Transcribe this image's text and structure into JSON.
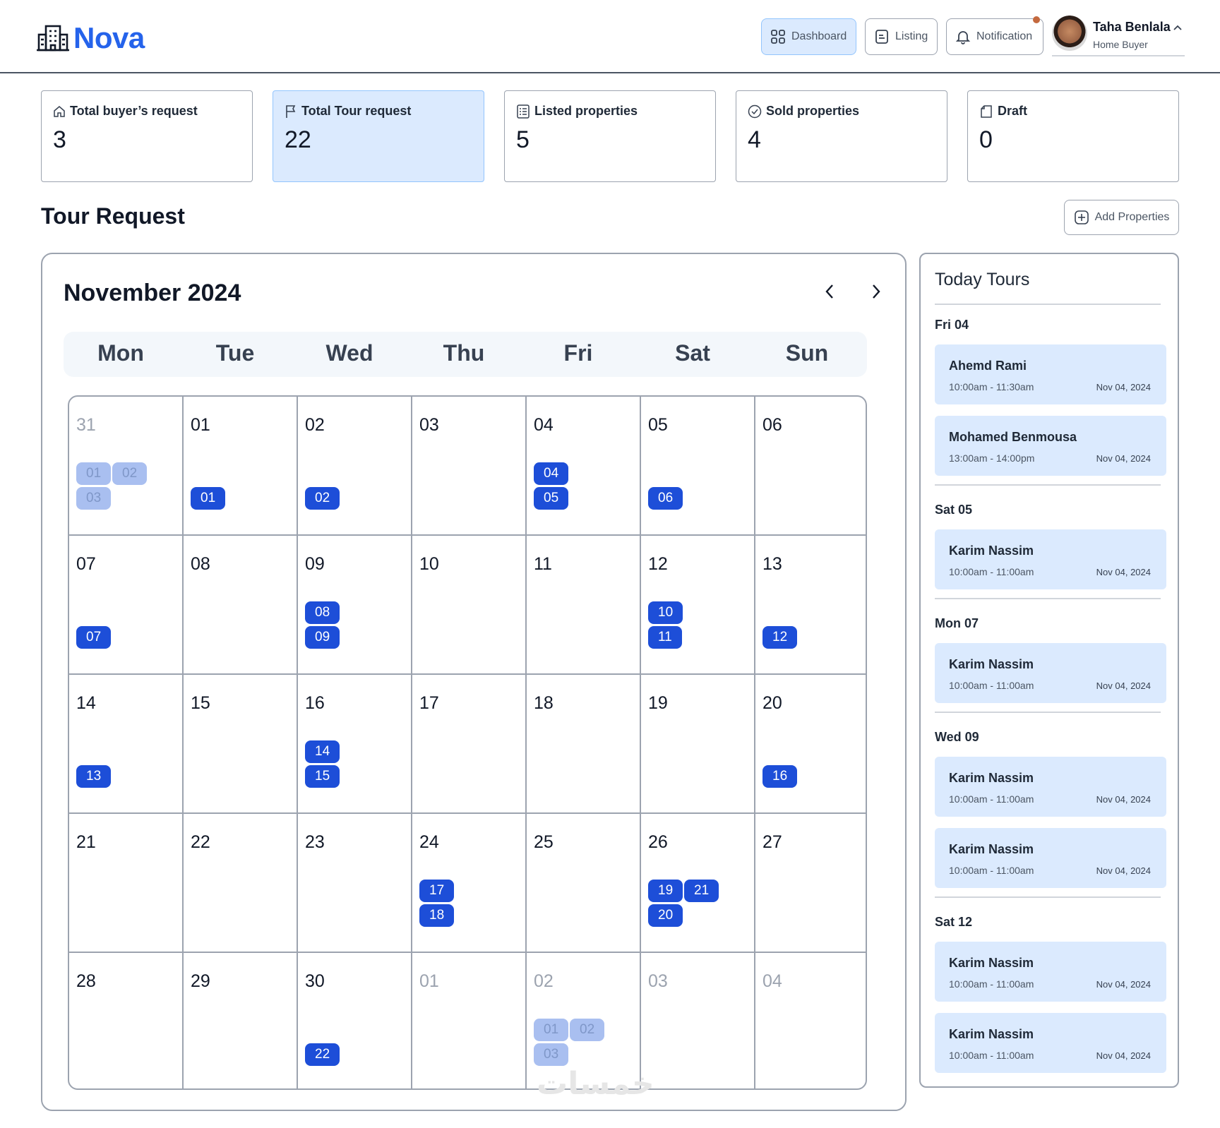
{
  "brand": {
    "name": "Nova"
  },
  "nav": {
    "dashboard": "Dashboard",
    "listing": "Listing",
    "notification": "Notification"
  },
  "user": {
    "name": "Taha Benlala",
    "role": "Home Buyer"
  },
  "stats": [
    {
      "label": "Total buyer’s request",
      "value": "3",
      "icon": "home-icon"
    },
    {
      "label": "Total Tour request",
      "value": "22",
      "icon": "flag-icon"
    },
    {
      "label": "Listed properties",
      "value": "5",
      "icon": "list-icon"
    },
    {
      "label": "Sold properties",
      "value": "4",
      "icon": "check-circle-icon"
    },
    {
      "label": "Draft",
      "value": "0",
      "icon": "file-icon"
    }
  ],
  "section": {
    "title": "Tour Request",
    "add_button": "Add Properties"
  },
  "calendar": {
    "month": "November 2024",
    "weekdays": [
      "Mon",
      "Tue",
      "Wed",
      "Thu",
      "Fri",
      "Sat",
      "Sun"
    ],
    "weeks": [
      [
        {
          "day": "31",
          "muted": true,
          "chips": [
            "01",
            "02",
            "03"
          ]
        },
        {
          "day": "01",
          "chips": [
            "01"
          ]
        },
        {
          "day": "02",
          "chips": [
            "02"
          ]
        },
        {
          "day": "03",
          "chips": []
        },
        {
          "day": "04",
          "chips": [
            "04",
            "05"
          ]
        },
        {
          "day": "05",
          "chips": [
            "06"
          ]
        },
        {
          "day": "06",
          "chips": []
        }
      ],
      [
        {
          "day": "07",
          "chips": [
            "07"
          ]
        },
        {
          "day": "08",
          "chips": []
        },
        {
          "day": "09",
          "chips": [
            "08",
            "09"
          ]
        },
        {
          "day": "10",
          "chips": []
        },
        {
          "day": "11",
          "chips": []
        },
        {
          "day": "12",
          "chips": [
            "10",
            "11"
          ]
        },
        {
          "day": "13",
          "chips": [
            "12"
          ]
        }
      ],
      [
        {
          "day": "14",
          "chips": [
            "13"
          ]
        },
        {
          "day": "15",
          "chips": []
        },
        {
          "day": "16",
          "chips": [
            "14",
            "15"
          ]
        },
        {
          "day": "17",
          "chips": []
        },
        {
          "day": "18",
          "chips": []
        },
        {
          "day": "19",
          "chips": []
        },
        {
          "day": "20",
          "chips": [
            "16"
          ]
        }
      ],
      [
        {
          "day": "21",
          "chips": []
        },
        {
          "day": "22",
          "chips": []
        },
        {
          "day": "23",
          "chips": []
        },
        {
          "day": "24",
          "chips": [
            "17",
            "18"
          ]
        },
        {
          "day": "25",
          "chips": []
        },
        {
          "day": "26",
          "chips": [
            "19",
            "21",
            "20"
          ]
        },
        {
          "day": "27",
          "chips": []
        }
      ],
      [
        {
          "day": "28",
          "chips": []
        },
        {
          "day": "29",
          "chips": []
        },
        {
          "day": "30",
          "chips": [
            "22"
          ]
        },
        {
          "day": "01",
          "muted": true,
          "chips": []
        },
        {
          "day": "02",
          "muted": true,
          "chips": [
            "01",
            "02",
            "03"
          ]
        },
        {
          "day": "03",
          "muted": true,
          "chips": []
        },
        {
          "day": "04",
          "muted": true,
          "chips": []
        }
      ]
    ]
  },
  "today_tours": {
    "title": "Today Tours",
    "groups": [
      {
        "label": "Fri 04",
        "tours": [
          {
            "name": "Ahemd Rami",
            "time": "10:00am - 11:30am",
            "date": "Nov 04, 2024"
          },
          {
            "name": "Mohamed Benmousa",
            "time": "13:00am - 14:00pm",
            "date": "Nov 04, 2024"
          }
        ]
      },
      {
        "label": "Sat 05",
        "tours": [
          {
            "name": "Karim Nassim",
            "time": "10:00am - 11:00am",
            "date": "Nov 04, 2024"
          }
        ]
      },
      {
        "label": "Mon 07",
        "tours": [
          {
            "name": "Karim Nassim",
            "time": "10:00am - 11:00am",
            "date": "Nov 04, 2024"
          }
        ]
      },
      {
        "label": "Wed 09",
        "tours": [
          {
            "name": "Karim Nassim",
            "time": "10:00am - 11:00am",
            "date": "Nov 04, 2024"
          },
          {
            "name": "Karim Nassim",
            "time": "10:00am - 11:00am",
            "date": "Nov 04, 2024"
          }
        ]
      },
      {
        "label": "Sat 12",
        "tours": [
          {
            "name": "Karim Nassim",
            "time": "10:00am - 11:00am",
            "date": "Nov 04, 2024"
          },
          {
            "name": "Karim Nassim",
            "time": "10:00am - 11:00am",
            "date": "Nov 04, 2024"
          }
        ]
      }
    ]
  },
  "watermark": "خمسات",
  "colors": {
    "accent": "#2563eb",
    "chip": "#1d4ed8",
    "chip_muted": "#a9bff0",
    "highlight": "#dbeafe",
    "notification_dot": "#c4693e"
  }
}
